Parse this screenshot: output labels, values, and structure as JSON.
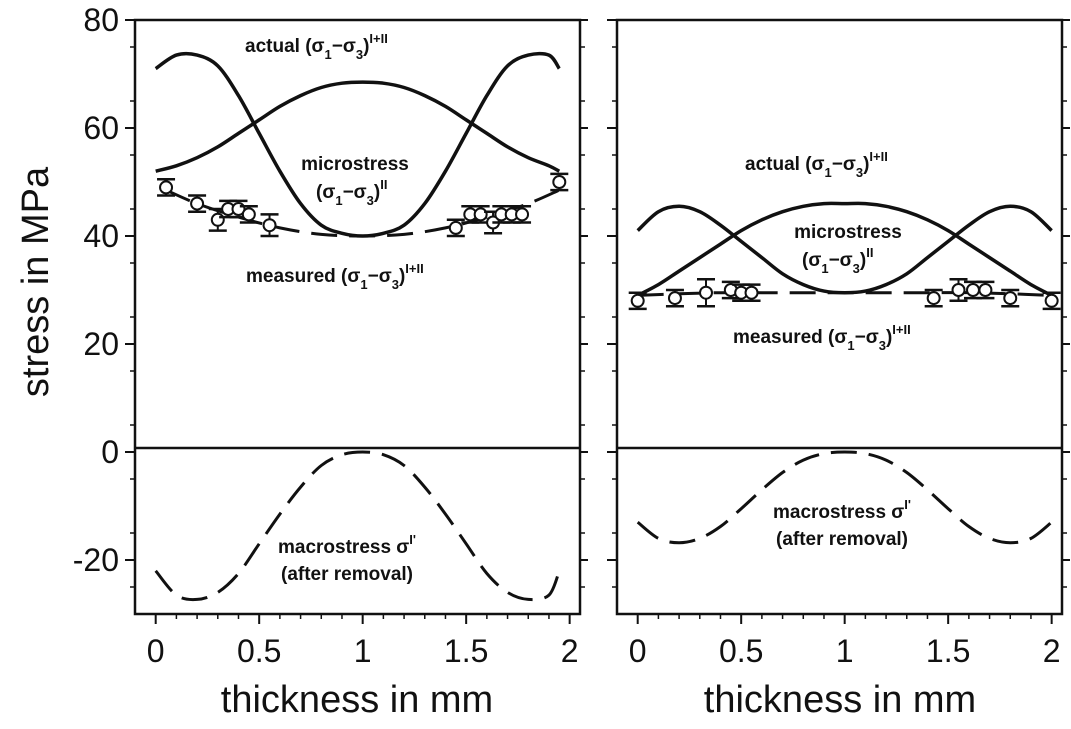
{
  "chart_data": {
    "type": "line",
    "ylabel": "stress in MPa",
    "ylim": [
      -30,
      80
    ],
    "y_ticks": [
      "80",
      "60",
      "40",
      "20",
      "0",
      "-20"
    ],
    "grid": false,
    "panels": [
      {
        "xlabel": "thickness in mm",
        "xlim": [
          -0.1,
          2.05
        ],
        "x_ticks": [
          "0",
          "0.5",
          "1",
          "1.5",
          "2"
        ],
        "series": [
          {
            "style": "solid",
            "x": [
              0.0,
              0.1,
              0.2,
              0.3,
              0.4,
              0.5,
              0.6,
              0.7,
              0.8,
              0.9,
              1.0,
              1.1,
              1.2,
              1.3,
              1.4,
              1.5,
              1.6,
              1.7,
              1.8,
              1.9,
              1.95
            ],
            "y": [
              71,
              73.5,
              73.5,
              71.5,
              66,
              59,
              52,
              46,
              42,
              40.5,
              40,
              40.5,
              42,
              46,
              52,
              59,
              66,
              71.5,
              73.5,
              73.5,
              71
            ]
          },
          {
            "style": "solid",
            "x": [
              0.0,
              0.1,
              0.2,
              0.3,
              0.4,
              0.5,
              0.6,
              0.7,
              0.8,
              0.9,
              1.0,
              1.1,
              1.2,
              1.3,
              1.4,
              1.5,
              1.6,
              1.7,
              1.8,
              1.9,
              1.95
            ],
            "y": [
              52,
              53,
              54.5,
              56.5,
              59,
              61.5,
              64,
              66,
              67.5,
              68.3,
              68.5,
              68.3,
              67.5,
              66,
              64,
              61.5,
              59,
              56.5,
              54.5,
              53,
              52
            ]
          },
          {
            "style": "dashed",
            "x": [
              0.05,
              0.2,
              0.4,
              0.6,
              0.8,
              1.0,
              1.2,
              1.4,
              1.6,
              1.8,
              1.95
            ],
            "y": [
              48.5,
              46,
              43.5,
              41.5,
              40.3,
              40,
              40.3,
              41.5,
              43.5,
              46,
              48.5
            ]
          },
          {
            "style": "points_errorbars",
            "x": [
              0.05,
              0.2,
              0.3,
              0.35,
              0.4,
              0.45,
              0.55,
              1.45,
              1.52,
              1.57,
              1.63,
              1.67,
              1.72,
              1.77,
              1.95
            ],
            "y": [
              49,
              46,
              43,
              45,
              45,
              44,
              42,
              41.5,
              44,
              44,
              42.5,
              44,
              44,
              44,
              50
            ],
            "err": [
              1.5,
              1.5,
              2,
              1.5,
              1.5,
              1.5,
              2,
              1.5,
              1.5,
              1.5,
              2,
              1.5,
              1.5,
              1.5,
              1.5
            ]
          },
          {
            "style": "dashed",
            "x": [
              0.0,
              0.1,
              0.2,
              0.3,
              0.4,
              0.5,
              0.6,
              0.7,
              0.8,
              0.9,
              1.0,
              1.1,
              1.2,
              1.3,
              1.4,
              1.5,
              1.6,
              1.7,
              1.8,
              1.9,
              1.95
            ],
            "y": [
              -22,
              -26.5,
              -27.3,
              -26,
              -22.5,
              -17,
              -11.5,
              -6.5,
              -2.5,
              -0.5,
              0,
              -0.5,
              -2.5,
              -6.5,
              -11.5,
              -17,
              -22.5,
              -26,
              -27.3,
              -26.5,
              -22
            ]
          }
        ]
      },
      {
        "xlabel": "thickness in mm",
        "xlim": [
          -0.1,
          2.05
        ],
        "x_ticks": [
          "0",
          "0.5",
          "1",
          "1.5",
          "2"
        ],
        "series": [
          {
            "style": "solid",
            "x": [
              0.0,
              0.1,
              0.2,
              0.3,
              0.4,
              0.5,
              0.6,
              0.7,
              0.8,
              0.9,
              1.0,
              1.1,
              1.2,
              1.3,
              1.4,
              1.5,
              1.6,
              1.7,
              1.8,
              1.9,
              2.0
            ],
            "y": [
              41,
              44.5,
              45.5,
              44.5,
              42,
              39,
              36,
              33,
              31,
              29.8,
              29.5,
              29.8,
              31,
              33,
              36,
              39,
              42,
              44.5,
              45.5,
              44.5,
              41
            ]
          },
          {
            "style": "solid",
            "x": [
              0.0,
              0.1,
              0.2,
              0.3,
              0.4,
              0.5,
              0.6,
              0.7,
              0.8,
              0.9,
              1.0,
              1.1,
              1.2,
              1.3,
              1.4,
              1.5,
              1.6,
              1.7,
              1.8,
              1.9,
              2.0
            ],
            "y": [
              29,
              31,
              33.5,
              36,
              38.5,
              41,
              43,
              44.5,
              45.5,
              46,
              46,
              46,
              45.5,
              44.5,
              43,
              41,
              38.5,
              36,
              33.5,
              31,
              29
            ]
          },
          {
            "style": "dashed",
            "x": [
              0.0,
              0.2,
              0.4,
              0.6,
              0.8,
              1.0,
              1.2,
              1.4,
              1.6,
              1.8,
              2.0
            ],
            "y": [
              29,
              29.3,
              29.5,
              29.5,
              29.5,
              29.5,
              29.5,
              29.5,
              29.5,
              29.3,
              29
            ]
          },
          {
            "style": "points_errorbars",
            "x": [
              0.0,
              0.18,
              0.33,
              0.45,
              0.5,
              0.55,
              1.43,
              1.55,
              1.62,
              1.68,
              1.8,
              2.0
            ],
            "y": [
              28,
              28.5,
              29.5,
              30,
              29.5,
              29.5,
              28.5,
              30,
              30,
              30,
              28.5,
              28
            ],
            "err": [
              1.5,
              1.5,
              2.5,
              1.5,
              1.5,
              1.5,
              1.5,
              2,
              1.5,
              1.5,
              1.5,
              1.5
            ]
          },
          {
            "style": "dashed",
            "x": [
              0.0,
              0.1,
              0.2,
              0.3,
              0.4,
              0.5,
              0.6,
              0.7,
              0.8,
              0.9,
              1.0,
              1.1,
              1.2,
              1.3,
              1.4,
              1.5,
              1.6,
              1.7,
              1.8,
              1.9,
              2.0
            ],
            "y": [
              -13,
              -16,
              -16.8,
              -16,
              -13.8,
              -10.5,
              -7,
              -3.8,
              -1.5,
              -0.3,
              0,
              -0.3,
              -1.5,
              -3.8,
              -7,
              -10.5,
              -13.8,
              -16,
              -16.8,
              -16,
              -13
            ]
          }
        ]
      }
    ]
  },
  "annotations": {
    "left": {
      "actual_prefix": "actual (σ",
      "actual_sub": "1",
      "actual_mid": "−σ",
      "actual_sub2": "3",
      "actual_close": ")",
      "actual_sup": "I+II",
      "micro_line1": "microstress",
      "micro_open": "(σ",
      "micro_sub": "1",
      "micro_mid": "−σ",
      "micro_sub2": "3",
      "micro_close": ")",
      "micro_sup": "II",
      "measured_prefix": "measured (σ",
      "measured_sub": "1",
      "measured_mid": "−σ",
      "measured_sub2": "3",
      "measured_close": ")",
      "measured_sup": "I+II",
      "macro_line1": "macrostress σ",
      "macro_sup": "I'",
      "macro_line2": "(after removal)"
    },
    "right": {
      "actual_prefix": "actual (σ",
      "actual_sub": "1",
      "actual_mid": "−σ",
      "actual_sub2": "3",
      "actual_close": ")",
      "actual_sup": "I+II",
      "micro_line1": "microstress",
      "micro_open": "(σ",
      "micro_sub": "1",
      "micro_mid": "−σ",
      "micro_sub2": "3",
      "micro_close": ")",
      "micro_sup": "II",
      "measured_prefix": "measured (σ",
      "measured_sub": "1",
      "measured_mid": "−σ",
      "measured_sub2": "3",
      "measured_close": ")",
      "measured_sup": "I+II",
      "macro_line1": "macrostress σ",
      "macro_sup": "I'",
      "macro_line2": "(after removal)"
    }
  }
}
